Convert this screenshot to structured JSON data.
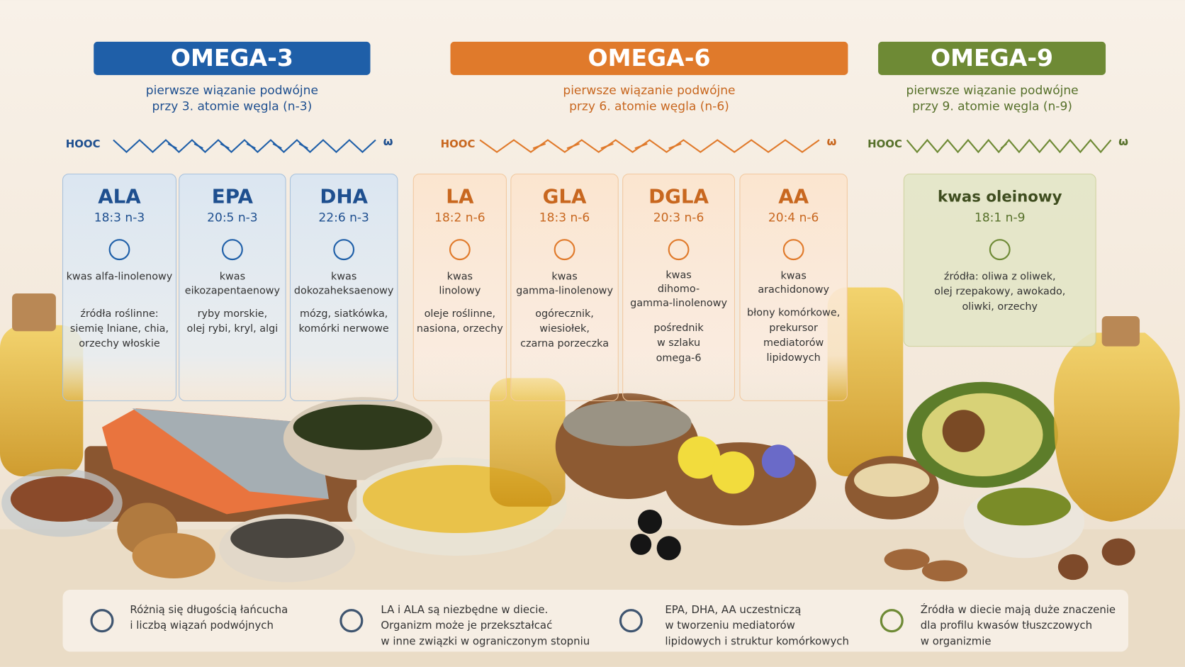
{
  "groups": [
    {
      "title": "OMEGA-3",
      "subtitle": [
        "pierwsze wiązanie podwójne",
        "przy 3. atomie węgla (n-3)"
      ],
      "chain": {
        "start": "HOOC",
        "end": "ω"
      },
      "cards": [
        {
          "name": "ALA",
          "formula": "18:3 n-3",
          "description": [
            "kwas alfa-linolenowy"
          ],
          "sources": [
            "źródła roślinne:",
            "siemię lniane, chia,",
            "orzechy włoskie"
          ]
        },
        {
          "name": "EPA",
          "formula": "20:5 n-3",
          "description": [
            "kwas",
            "eikozapentaenowy"
          ],
          "sources": [
            "ryby morskie,",
            "olej rybi, kryl, algi"
          ]
        },
        {
          "name": "DHA",
          "formula": "22:6 n-3",
          "description": [
            "kwas",
            "dokozaheksaenowy"
          ],
          "sources": [
            "mózg, siatkówka,",
            "komórki nerwowe"
          ]
        }
      ]
    },
    {
      "title": "OMEGA-6",
      "subtitle": [
        "pierwsze wiązanie podwójne",
        "przy 6. atomie węgla (n-6)"
      ],
      "chain": {
        "start": "HOOC",
        "end": "ω"
      },
      "cards": [
        {
          "name": "LA",
          "formula": "18:2 n-6",
          "description": [
            "kwas",
            "linolowy"
          ],
          "sources": [
            "oleje roślinne,",
            "nasiona, orzechy"
          ]
        },
        {
          "name": "GLA",
          "formula": "18:3 n-6",
          "description": [
            "kwas",
            "gamma-linolenowy"
          ],
          "sources": [
            "ogórecznik,",
            "wiesiołek,",
            "czarna porzeczka"
          ]
        },
        {
          "name": "DGLA",
          "formula": "20:3 n-6",
          "description": [
            "kwas",
            "dihomo-",
            "gamma-linolenowy"
          ],
          "sources": [
            "pośrednik",
            "w szlaku",
            "omega-6"
          ]
        },
        {
          "name": "AA",
          "formula": "20:4 n-6",
          "description": [
            "kwas",
            "arachidonowy"
          ],
          "sources": [
            "błony komórkowe,",
            "prekursor",
            "mediatorów",
            "lipidowych"
          ]
        }
      ]
    },
    {
      "title": "OMEGA-9",
      "subtitle": [
        "pierwsze wiązanie podwójne",
        "przy 9. atomie węgla (n-9)"
      ],
      "chain": {
        "start": "HOOC",
        "end": "ω"
      },
      "cards": [
        {
          "name": "kwas oleinowy",
          "formula": "18:1 n-9",
          "description": [],
          "sources": [
            "źródła: oliwa z oliwek,",
            "olej rzepakowy, awokado,",
            "oliwki, orzechy"
          ]
        }
      ]
    }
  ],
  "notes": [
    [
      "Różnią się długością łańcucha",
      "i liczbą wiązań podwójnych"
    ],
    [
      "LA i ALA są niezbędne w diecie.",
      "Organizm może je przekształcać",
      "w inne związki w ograniczonym stopniu"
    ],
    [
      "EPA, DHA, AA uczestniczą",
      "w tworzeniu mediatorów",
      "lipidowych i struktur komórkowych"
    ],
    [
      "Źródła w diecie mają duże znaczenie",
      "dla profilu kwasów tłuszczowych",
      "w organizmie"
    ]
  ]
}
